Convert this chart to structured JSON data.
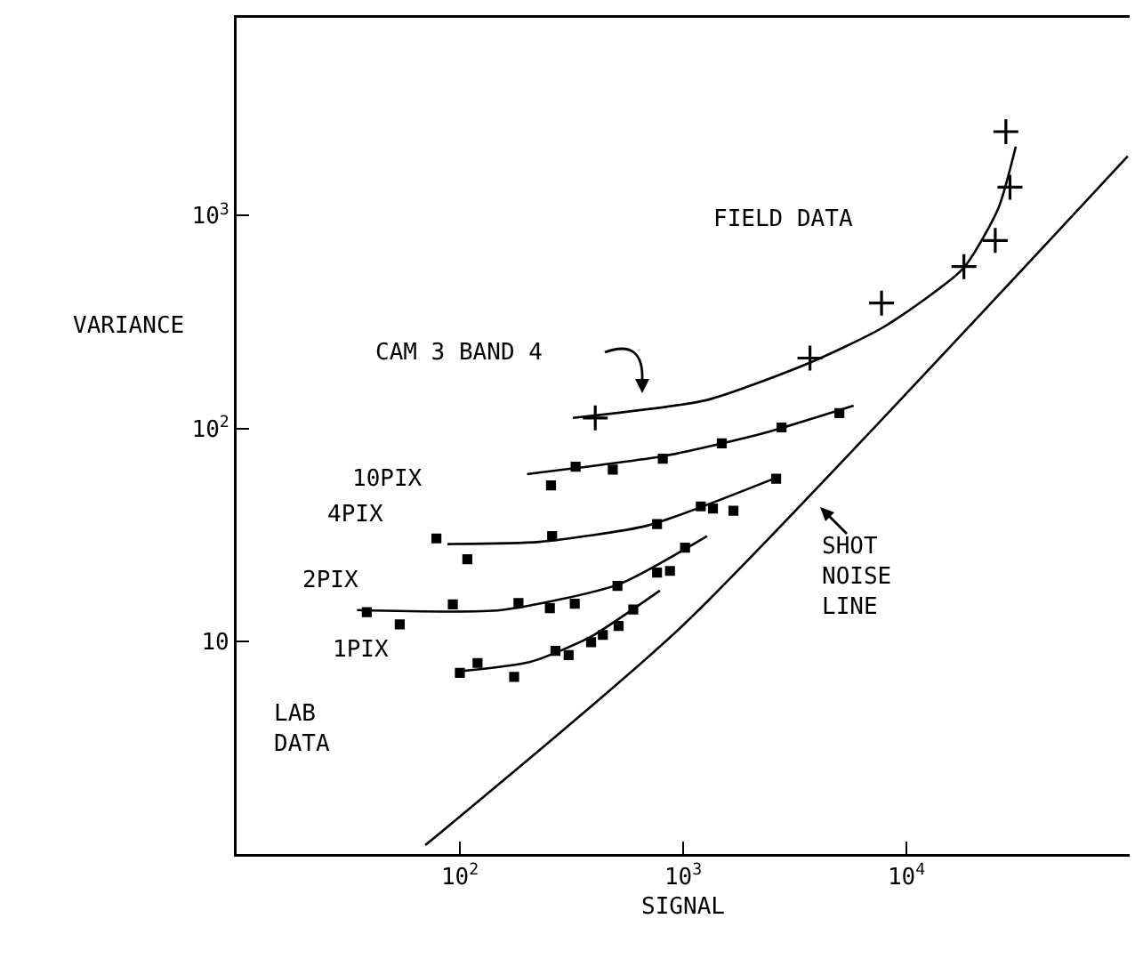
{
  "chart_data": {
    "type": "scatter",
    "xlabel": "SIGNAL",
    "ylabel": "VARIANCE",
    "log": "xy",
    "grid": false,
    "xlim": [
      10,
      100000
    ],
    "ylim": [
      1,
      8500
    ],
    "xticks": [
      {
        "value": 100,
        "label": "10$^{2}$"
      },
      {
        "value": 1000,
        "label": "10$^{3}$"
      },
      {
        "value": 10000,
        "label": "10$^{4}$"
      }
    ],
    "yticks": [
      10,
      {
        "value": 100,
        "label": "10$^{2}$"
      },
      {
        "value": 1000,
        "label": "10$^{3}$"
      }
    ],
    "series": [
      {
        "type": "scatter",
        "marker": "cross",
        "color": "#000000",
        "x": [
          404,
          3700,
          7740,
          18100,
          25000,
          29100,
          27900
        ],
        "values": [
          112,
          214,
          388,
          576,
          764,
          1360,
          2480
        ]
      },
      {
        "type": "line",
        "marker": "none",
        "color": "#000000",
        "x": [
          321,
          1280,
          3670,
          7890,
          17900,
          25800,
          30900
        ],
        "values": [
          112,
          136,
          203,
          299,
          562,
          1080,
          2110
        ]
      },
      {
        "type": "scatter",
        "marker": "square",
        "color": "#000000",
        "x": [
          256,
          330,
          484,
          811,
          1490,
          2760,
          5010
        ],
        "values": [
          54,
          66,
          64,
          72,
          85,
          101,
          118
        ]
      },
      {
        "type": "line",
        "marker": "none",
        "color": "#000000",
        "x": [
          200,
          811,
          2210,
          5800
        ],
        "values": [
          61,
          74,
          94,
          128
        ]
      },
      {
        "type": "scatter",
        "marker": "square",
        "color": "#000000",
        "x": [
          78.5,
          108,
          259,
          764,
          1200,
          1360,
          1680,
          2610
        ],
        "values": [
          30.4,
          24.3,
          31.2,
          35.5,
          43,
          42,
          41,
          58
        ]
      },
      {
        "type": "line",
        "marker": "none",
        "color": "#000000",
        "x": [
          88,
          227,
          696,
          2650
        ],
        "values": [
          28.6,
          29.3,
          35,
          59
        ]
      },
      {
        "type": "scatter",
        "marker": "square",
        "color": "#000000",
        "x": [
          38.3,
          53.8,
          93,
          183,
          253,
          327,
          508,
          764,
          873,
          1020
        ],
        "values": [
          13.7,
          12.0,
          14.9,
          15.1,
          14.3,
          15,
          18.2,
          21,
          21.4,
          27.5
        ]
      },
      {
        "type": "line",
        "marker": "none",
        "color": "#000000",
        "x": [
          34.6,
          153,
          514,
          1280
        ],
        "values": [
          14,
          14,
          18.5,
          31.2
        ]
      },
      {
        "type": "scatter",
        "marker": "square",
        "color": "#000000",
        "x": [
          100,
          120,
          175,
          268,
          307,
          387,
          437,
          514,
          598
        ],
        "values": [
          7.1,
          7.9,
          6.8,
          9.0,
          8.6,
          9.9,
          10.7,
          11.8,
          14.1
        ]
      },
      {
        "type": "line",
        "marker": "none",
        "color": "#000000",
        "x": [
          97,
          207,
          380,
          787
        ],
        "values": [
          7.2,
          8.0,
          10.4,
          17.3
        ]
      },
      {
        "type": "line",
        "marker": "none",
        "color": "#000000",
        "x": [
          70,
          1000,
          98000
        ],
        "values": [
          1.1,
          11.9,
          1900
        ]
      }
    ],
    "annotations": [
      "FIELD DATA",
      "CAM 3 BAND 4",
      "SHOT\nNOISE\nLINE",
      "10PIX",
      "4PIX",
      "2PIX",
      "1PIX",
      "LAB\nDATA"
    ]
  }
}
